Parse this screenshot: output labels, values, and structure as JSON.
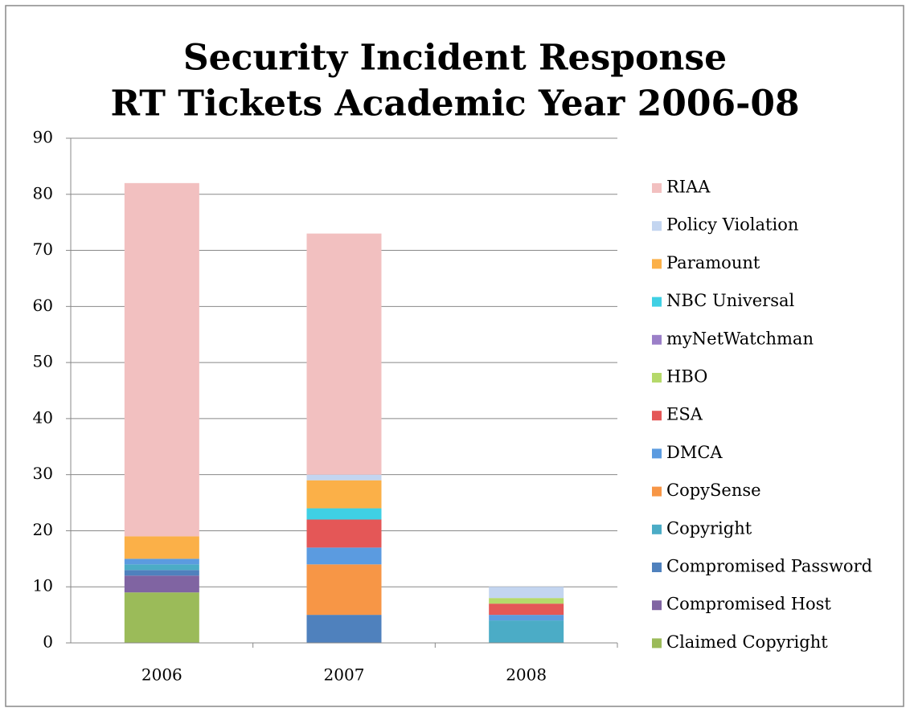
{
  "chart_data": {
    "type": "stacked_bar",
    "title": [
      "Security Incident Response",
      "RT Tickets Academic Year 2006-08"
    ],
    "categories": [
      "2006",
      "2007",
      "2008"
    ],
    "ylim": [
      0,
      90
    ],
    "yticks": [
      0,
      10,
      20,
      30,
      40,
      50,
      60,
      70,
      80,
      90
    ],
    "grid": true,
    "legend": "right",
    "series": [
      {
        "name": "Claimed Copyright",
        "color": "#9bbb59",
        "values": [
          9,
          0,
          0
        ]
      },
      {
        "name": "Compromised Host",
        "color": "#8064a2",
        "values": [
          3,
          0,
          0
        ]
      },
      {
        "name": "Compromised Password",
        "color": "#4f81bd",
        "values": [
          1,
          5,
          0
        ]
      },
      {
        "name": "Copyright",
        "color": "#4bacc6",
        "values": [
          1,
          0,
          4
        ]
      },
      {
        "name": "CopySense",
        "color": "#f79646",
        "values": [
          0,
          9,
          0
        ]
      },
      {
        "name": "DMCA",
        "color": "#5b9be0",
        "values": [
          1,
          3,
          1
        ]
      },
      {
        "name": "ESA",
        "color": "#e45757",
        "values": [
          0,
          5,
          2
        ]
      },
      {
        "name": "HBO",
        "color": "#b5d96a",
        "values": [
          0,
          0,
          1
        ]
      },
      {
        "name": "myNetWatchman",
        "color": "#9b7fc8",
        "values": [
          0,
          0,
          0
        ]
      },
      {
        "name": "NBC Universal",
        "color": "#3fd0e4",
        "values": [
          0,
          2,
          0
        ]
      },
      {
        "name": "Paramount",
        "color": "#fbb048",
        "values": [
          4,
          5,
          0
        ]
      },
      {
        "name": "Policy Violation",
        "color": "#c3d5f0",
        "values": [
          0,
          1,
          2
        ]
      },
      {
        "name": "RIAA",
        "color": "#f2c0c0",
        "values": [
          63,
          43,
          0
        ]
      }
    ]
  }
}
